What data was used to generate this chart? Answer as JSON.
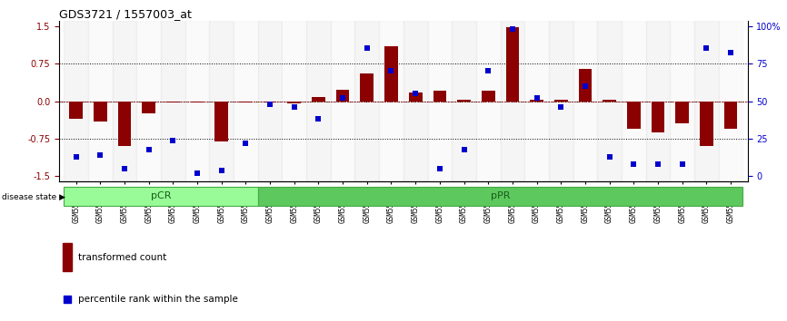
{
  "title": "GDS3721 / 1557003_at",
  "samples": [
    "GSM559062",
    "GSM559063",
    "GSM559064",
    "GSM559065",
    "GSM559066",
    "GSM559067",
    "GSM559068",
    "GSM559069",
    "GSM559042",
    "GSM559043",
    "GSM559044",
    "GSM559045",
    "GSM559046",
    "GSM559047",
    "GSM559048",
    "GSM559049",
    "GSM559050",
    "GSM559051",
    "GSM559052",
    "GSM559053",
    "GSM559054",
    "GSM559055",
    "GSM559056",
    "GSM559057",
    "GSM559058",
    "GSM559059",
    "GSM559060",
    "GSM559061"
  ],
  "bar_values": [
    -0.35,
    -0.4,
    -0.9,
    -0.25,
    -0.02,
    -0.02,
    -0.8,
    -0.02,
    -0.02,
    -0.05,
    0.08,
    0.22,
    0.55,
    1.1,
    0.18,
    0.2,
    0.02,
    0.2,
    1.48,
    0.02,
    0.02,
    0.65,
    0.02,
    -0.55,
    -0.62,
    -0.45,
    -0.9,
    -0.55
  ],
  "percentile_values": [
    13,
    14,
    5,
    18,
    24,
    2,
    4,
    22,
    48,
    46,
    38,
    52,
    85,
    70,
    55,
    5,
    18,
    70,
    98,
    52,
    46,
    60,
    13,
    8,
    8,
    8,
    85,
    82
  ],
  "pcr_count": 8,
  "bar_color": "#8B0000",
  "dot_color": "#0000CD",
  "ylim": [
    -1.6,
    1.6
  ],
  "yticks_left": [
    -1.5,
    -0.75,
    0.0,
    0.75,
    1.5
  ],
  "yticks_right": [
    0,
    25,
    50,
    75,
    100
  ],
  "hlines": [
    0.75,
    0.0,
    -0.75
  ],
  "pcr_color": "#98FB98",
  "ppr_color": "#5DC85D",
  "legend_labels": [
    "transformed count",
    "percentile rank within the sample"
  ],
  "bar_width": 0.55,
  "dot_size": 20
}
